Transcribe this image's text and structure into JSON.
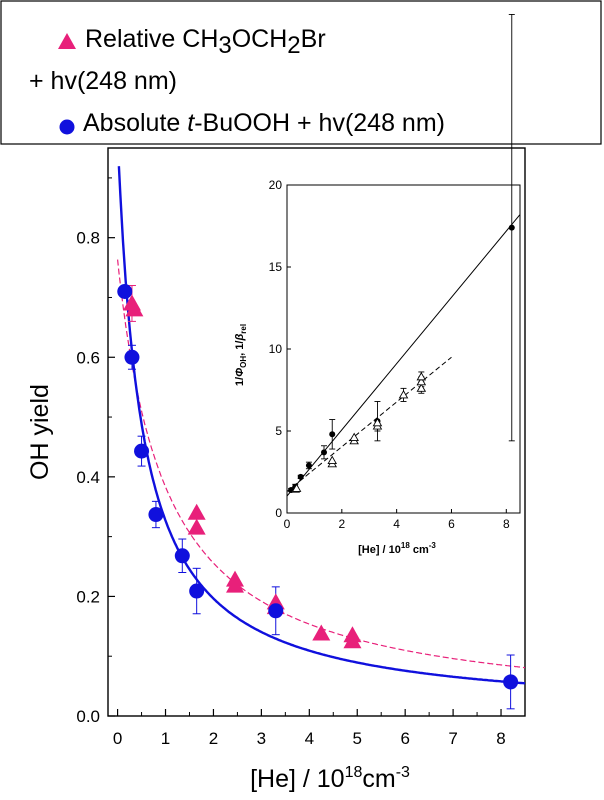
{
  "chart_data": {
    "main": {
      "type": "scatter",
      "xlabel": "[He] / 10",
      "xlabel_sup": "18",
      "xlabel_unit": "cm",
      "xlabel_unit_sup": "-3",
      "ylabel": "OH yield",
      "xlim": [
        -0.2,
        8.5
      ],
      "ylim": [
        0.0,
        0.95
      ],
      "xticks": [
        0,
        1,
        2,
        3,
        4,
        5,
        6,
        7,
        8
      ],
      "yticks": [
        0.0,
        0.2,
        0.4,
        0.6,
        0.8
      ],
      "ytick_labels": [
        "0.0",
        "0.2",
        "0.4",
        "0.6",
        "0.8"
      ],
      "legend": {
        "placement": "top-left",
        "entries": [
          {
            "marker": "triangle",
            "color": "#e8207a",
            "line1": "Relative CH",
            "sub1": "3",
            "mid": "OCH",
            "sub2": "2",
            "end": "Br",
            "line2": "+ hv(248 nm)"
          },
          {
            "marker": "circle",
            "color": "#1010dd",
            "pre": "Absolute ",
            "italic": "t",
            "post": "-BuOOH + hv(248 nm)"
          }
        ]
      },
      "series": [
        {
          "name": "Relative CH3OCH2Br + hv(248 nm)",
          "marker": "triangle",
          "color": "#e8207a",
          "points": [
            {
              "x": 0.3,
              "y": 0.69,
              "err": 0.03
            },
            {
              "x": 0.35,
              "y": 0.68,
              "err": 0.0
            },
            {
              "x": 1.65,
              "y": 0.34,
              "err": 0.0
            },
            {
              "x": 1.65,
              "y": 0.315,
              "err": 0.0
            },
            {
              "x": 2.45,
              "y": 0.228,
              "err": 0.0
            },
            {
              "x": 2.45,
              "y": 0.218,
              "err": 0.0
            },
            {
              "x": 3.3,
              "y": 0.19,
              "err": 0.0
            },
            {
              "x": 3.3,
              "y": 0.182,
              "err": 0.0
            },
            {
              "x": 4.25,
              "y": 0.138,
              "err": 0.0
            },
            {
              "x": 4.9,
              "y": 0.135,
              "err": 0.0
            },
            {
              "x": 4.9,
              "y": 0.125,
              "err": 0.0
            }
          ],
          "fit_style": "dashed",
          "fit_a": 1.31,
          "fit_b": 1.3
        },
        {
          "name": "Absolute t-BuOOH + hv(248 nm)",
          "marker": "circle",
          "color": "#1010dd",
          "points": [
            {
              "x": 0.15,
              "y": 0.71,
              "err": 0.0
            },
            {
              "x": 0.3,
              "y": 0.6,
              "err": 0.02
            },
            {
              "x": 0.5,
              "y": 0.443,
              "err": 0.025
            },
            {
              "x": 0.8,
              "y": 0.337,
              "err": 0.022
            },
            {
              "x": 1.35,
              "y": 0.268,
              "err": 0.028
            },
            {
              "x": 1.65,
              "y": 0.209,
              "err": 0.038
            },
            {
              "x": 3.3,
              "y": 0.176,
              "err": 0.04
            },
            {
              "x": 8.2,
              "y": 0.057,
              "err": 0.045
            }
          ],
          "fit_style": "solid",
          "fit_a": 1.03,
          "fit_b": 2.03
        }
      ]
    },
    "inset": {
      "type": "scatter",
      "xlabel": "[He] / 10",
      "xlabel_sup": "18",
      "xlabel_unit": " cm",
      "xlabel_unit_sup": "-3",
      "ylabel_parts": [
        "1/",
        "Φ",
        "OH",
        ", 1/",
        "β",
        "rel"
      ],
      "xlim": [
        0,
        8.5
      ],
      "ylim": [
        0,
        20
      ],
      "xticks": [
        0,
        2,
        4,
        6,
        8
      ],
      "yticks": [
        0,
        5,
        10,
        15,
        20
      ],
      "series": [
        {
          "name": "filled",
          "marker": "filled-circle",
          "points": [
            {
              "x": 0.15,
              "y": 1.4,
              "err": 0.1
            },
            {
              "x": 0.3,
              "y": 1.6,
              "err": 0.15
            },
            {
              "x": 0.5,
              "y": 2.2,
              "err": 0.1
            },
            {
              "x": 0.8,
              "y": 2.9,
              "err": 0.2
            },
            {
              "x": 1.35,
              "y": 3.7,
              "err": 0.4
            },
            {
              "x": 1.65,
              "y": 4.8,
              "err": 0.9
            },
            {
              "x": 3.3,
              "y": 5.6,
              "err": 1.2
            },
            {
              "x": 8.2,
              "y": 17.4,
              "err": 13.0
            }
          ],
          "line_style": "solid",
          "line_x": [
            0,
            8.5
          ],
          "line_y": [
            1.03,
            18.2
          ]
        },
        {
          "name": "open",
          "marker": "open-triangle",
          "points": [
            {
              "x": 0.3,
              "y": 1.45,
              "err": 0.1
            },
            {
              "x": 0.35,
              "y": 1.5,
              "err": 0.0
            },
            {
              "x": 1.65,
              "y": 3.0,
              "err": 0.0
            },
            {
              "x": 1.65,
              "y": 3.2,
              "err": 0.0
            },
            {
              "x": 2.45,
              "y": 4.4,
              "err": 0.0
            },
            {
              "x": 2.45,
              "y": 4.6,
              "err": 0.0
            },
            {
              "x": 3.3,
              "y": 5.3,
              "err": 0.3
            },
            {
              "x": 3.3,
              "y": 5.5,
              "err": 0.0
            },
            {
              "x": 4.25,
              "y": 7.2,
              "err": 0.4
            },
            {
              "x": 4.9,
              "y": 7.6,
              "err": 0.3
            },
            {
              "x": 4.9,
              "y": 8.0,
              "err": 0.3
            },
            {
              "x": 4.9,
              "y": 8.3,
              "err": 0.3
            }
          ],
          "line_style": "dashed",
          "line_x": [
            0,
            6.0
          ],
          "line_y": [
            1.31,
            9.5
          ]
        }
      ]
    }
  }
}
